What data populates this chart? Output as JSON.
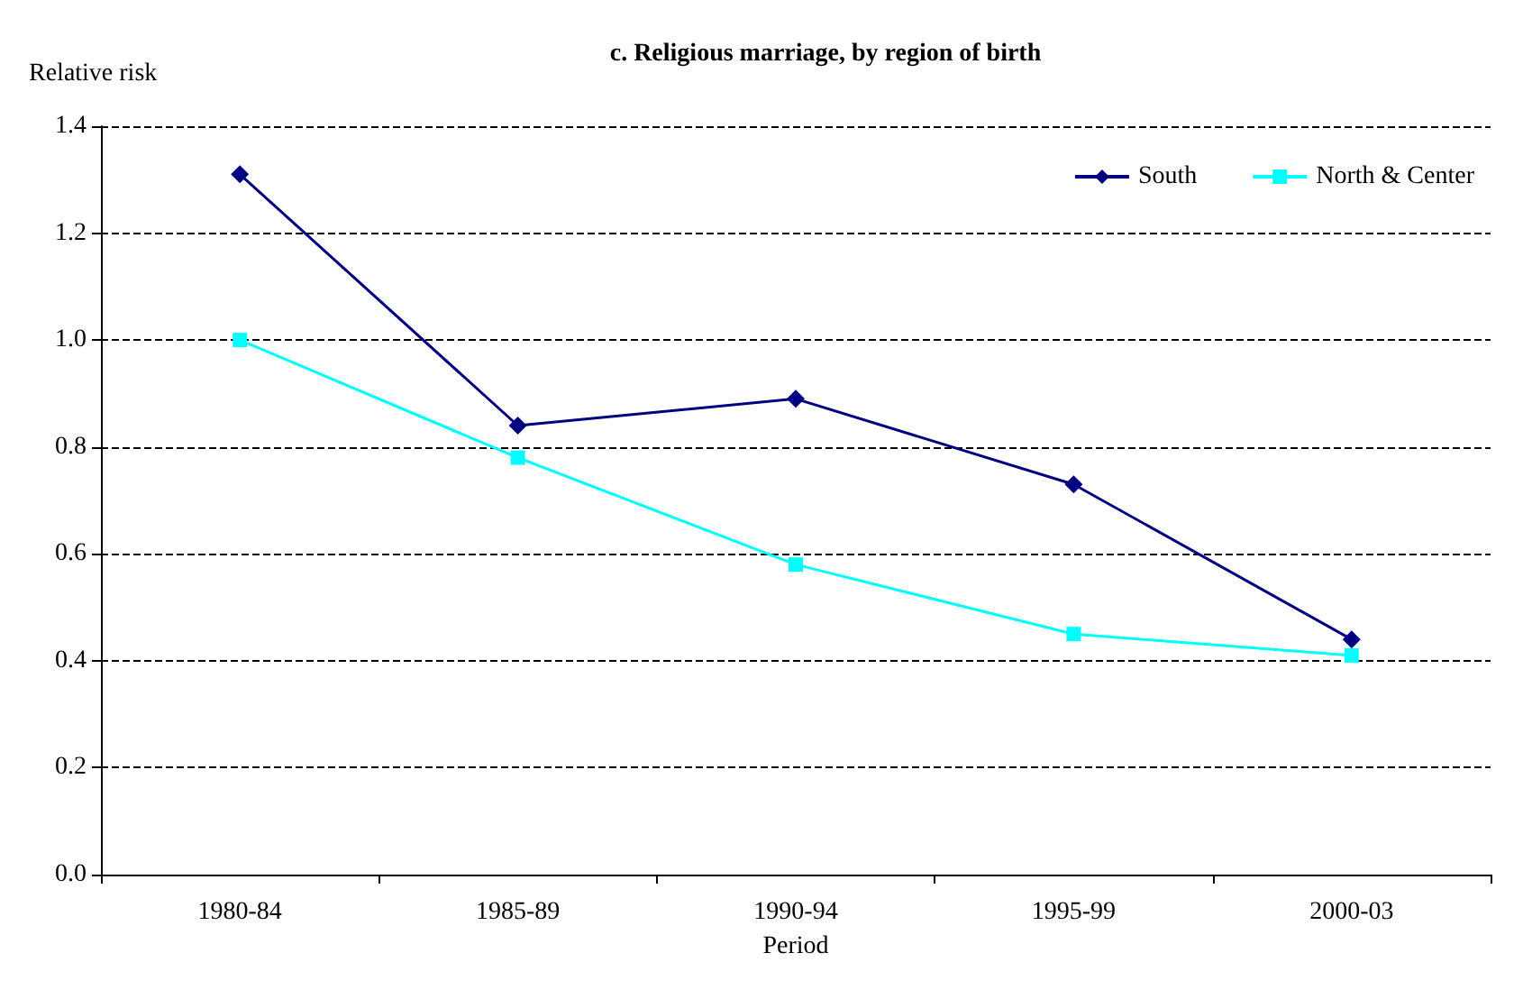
{
  "chart_data": {
    "type": "line",
    "title": "c. Religious marriage, by region of birth",
    "ylabel": "Relative risk",
    "xlabel": "Period",
    "categories": [
      "1980-84",
      "1985-89",
      "1990-94",
      "1995-99",
      "2000-03"
    ],
    "series": [
      {
        "name": "South",
        "color": "#000080",
        "marker": "diamond",
        "values": [
          1.31,
          0.84,
          0.89,
          0.73,
          0.44
        ]
      },
      {
        "name": "North & Center",
        "color": "#00ffff",
        "marker": "square",
        "values": [
          1.0,
          0.78,
          0.58,
          0.45,
          0.41
        ]
      }
    ],
    "ylim": [
      0,
      1.4
    ],
    "yticks": [
      {
        "value": 0,
        "label": "0.0"
      },
      {
        "value": 0.2,
        "label": "0.2"
      },
      {
        "value": 0.4,
        "label": "0.4"
      },
      {
        "value": 0.6,
        "label": "0.6"
      },
      {
        "value": 0.8,
        "label": "0.8"
      },
      {
        "value": 1,
        "label": "1.0"
      },
      {
        "value": 1.2,
        "label": "1.2"
      },
      {
        "value": 1.4,
        "label": "1.4"
      }
    ],
    "grid": "y",
    "legend": "top right",
    "line_style": "solid"
  }
}
